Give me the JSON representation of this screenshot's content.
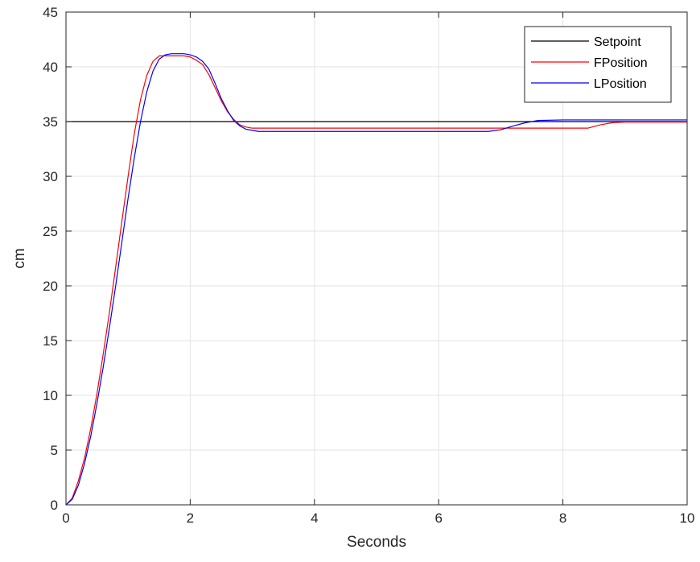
{
  "chart_data": {
    "type": "line",
    "title": "",
    "xlabel": "Seconds",
    "ylabel": "cm",
    "xlim": [
      0,
      10
    ],
    "ylim": [
      0,
      45
    ],
    "xticks": [
      0,
      2,
      4,
      6,
      8,
      10
    ],
    "yticks": [
      0,
      5,
      10,
      15,
      20,
      25,
      30,
      35,
      40,
      45
    ],
    "grid": true,
    "legend_position": "top-right",
    "series": [
      {
        "name": "Setpoint",
        "color": "#000000",
        "x": [
          0,
          10
        ],
        "y": [
          35,
          35
        ]
      },
      {
        "name": "FPosition",
        "color": "#ff0000",
        "x": [
          0,
          0.1,
          0.2,
          0.3,
          0.4,
          0.5,
          0.6,
          0.7,
          0.8,
          0.9,
          1.0,
          1.1,
          1.2,
          1.3,
          1.4,
          1.5,
          1.6,
          1.7,
          1.8,
          1.9,
          2.0,
          2.1,
          2.2,
          2.3,
          2.4,
          2.5,
          2.6,
          2.7,
          2.8,
          2.9,
          3.0,
          3.2,
          4.0,
          5.0,
          6.0,
          7.0,
          8.0,
          8.4,
          8.6,
          8.8,
          9.0,
          10.0
        ],
        "y": [
          0,
          0.6,
          2.2,
          4.3,
          7.0,
          10.2,
          13.8,
          17.6,
          21.7,
          25.9,
          30.0,
          33.9,
          37.0,
          39.2,
          40.5,
          41.0,
          41.0,
          41.0,
          41.0,
          41.0,
          40.9,
          40.6,
          40.2,
          39.3,
          38.1,
          36.9,
          35.9,
          35.2,
          34.7,
          34.5,
          34.4,
          34.4,
          34.4,
          34.4,
          34.4,
          34.4,
          34.4,
          34.4,
          34.7,
          34.9,
          34.95,
          34.95
        ]
      },
      {
        "name": "LPosition",
        "color": "#0000ff",
        "x": [
          0,
          0.1,
          0.2,
          0.3,
          0.4,
          0.5,
          0.6,
          0.7,
          0.8,
          0.9,
          1.0,
          1.1,
          1.2,
          1.3,
          1.4,
          1.5,
          1.6,
          1.7,
          1.8,
          1.9,
          2.0,
          2.1,
          2.2,
          2.3,
          2.4,
          2.5,
          2.6,
          2.7,
          2.8,
          2.9,
          3.0,
          3.1,
          3.2,
          4.0,
          5.0,
          6.0,
          6.8,
          7.0,
          7.2,
          7.4,
          7.6,
          8.0,
          9.0,
          10.0
        ],
        "y": [
          0,
          0.5,
          1.8,
          3.8,
          6.3,
          9.3,
          12.6,
          16.2,
          20.0,
          24.0,
          28.0,
          31.7,
          35.0,
          37.7,
          39.6,
          40.7,
          41.1,
          41.2,
          41.2,
          41.2,
          41.1,
          40.9,
          40.5,
          39.8,
          38.5,
          37.1,
          36.0,
          35.1,
          34.6,
          34.3,
          34.2,
          34.1,
          34.1,
          34.1,
          34.1,
          34.1,
          34.1,
          34.25,
          34.6,
          34.9,
          35.1,
          35.15,
          35.15,
          35.15
        ]
      }
    ]
  }
}
